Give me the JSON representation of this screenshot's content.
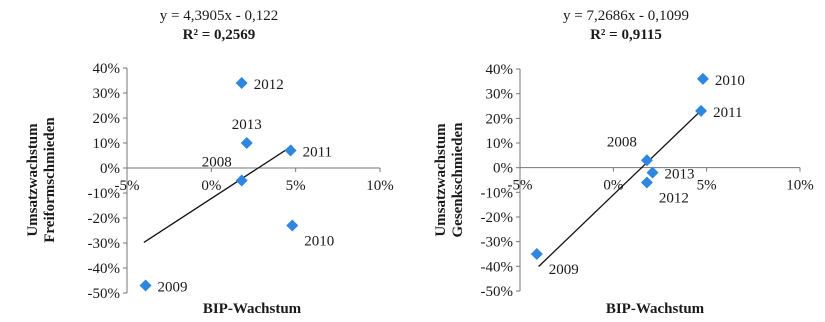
{
  "chart_data": [
    {
      "type": "scatter",
      "equation": "y = 4,3905x - 0,122",
      "r_squared": "R² = 0,2569",
      "xlabel": "BIP-Wachstum",
      "ylabel": [
        "Umsatzwachstum",
        "Freiformschmieden"
      ],
      "xlim": [
        -0.05,
        0.1
      ],
      "ylim": [
        -0.5,
        0.4
      ],
      "x_ticks": [
        -0.05,
        0.0,
        0.05,
        0.1
      ],
      "x_tick_labels": [
        "-5%",
        "0%",
        "5%",
        "10%"
      ],
      "y_ticks": [
        0.4,
        0.3,
        0.2,
        0.1,
        0.0,
        -0.1,
        -0.2,
        -0.3,
        -0.4,
        -0.5
      ],
      "y_tick_labels": [
        "40%",
        "30%",
        "20%",
        "10%",
        "0%",
        "-10%",
        "-20%",
        "-30%",
        "-40%",
        "-50%"
      ],
      "grid": false,
      "marker_color": "#2e86de",
      "trendline": {
        "slope": 4.3905,
        "intercept": -0.122,
        "x_range": [
          -0.04,
          0.048
        ]
      },
      "points": [
        {
          "label": "2008",
          "x": 0.018,
          "y": -0.05,
          "label_pos": "top-left"
        },
        {
          "label": "2009",
          "x": -0.039,
          "y": -0.47,
          "label_pos": "right"
        },
        {
          "label": "2010",
          "x": 0.048,
          "y": -0.23,
          "label_pos": "bottom-right"
        },
        {
          "label": "2011",
          "x": 0.047,
          "y": 0.07,
          "label_pos": "right"
        },
        {
          "label": "2012",
          "x": 0.018,
          "y": 0.34,
          "label_pos": "right"
        },
        {
          "label": "2013",
          "x": 0.021,
          "y": 0.1,
          "label_pos": "top"
        }
      ]
    },
    {
      "type": "scatter",
      "equation": "y = 7,2686x - 0,1099",
      "r_squared": "R² = 0,9115",
      "xlabel": "BIP-Wachstum",
      "ylabel": [
        "Umsatzwachstum",
        "Gesenkschmieden"
      ],
      "xlim": [
        -0.05,
        0.1
      ],
      "ylim": [
        -0.5,
        0.4
      ],
      "x_ticks": [
        -0.05,
        0.0,
        0.05,
        0.1
      ],
      "x_tick_labels": [
        "-5%",
        "0%",
        "5%",
        "10%"
      ],
      "y_ticks": [
        0.4,
        0.3,
        0.2,
        0.1,
        0.0,
        -0.1,
        -0.2,
        -0.3,
        -0.4,
        -0.5
      ],
      "y_tick_labels": [
        "40%",
        "30%",
        "20%",
        "10%",
        "0%",
        "-10%",
        "-20%",
        "-30%",
        "-40%",
        "-50%"
      ],
      "grid": false,
      "marker_color": "#2e86de",
      "trendline": {
        "slope": 7.2686,
        "intercept": -0.1099,
        "x_range": [
          -0.04,
          0.048
        ]
      },
      "points": [
        {
          "label": "2008",
          "x": 0.018,
          "y": 0.03,
          "label_pos": "top-left"
        },
        {
          "label": "2009",
          "x": -0.041,
          "y": -0.35,
          "label_pos": "bottom-right"
        },
        {
          "label": "2010",
          "x": 0.048,
          "y": 0.36,
          "label_pos": "right"
        },
        {
          "label": "2011",
          "x": 0.047,
          "y": 0.23,
          "label_pos": "right"
        },
        {
          "label": "2012",
          "x": 0.018,
          "y": -0.06,
          "label_pos": "bottom-right"
        },
        {
          "label": "2013",
          "x": 0.021,
          "y": -0.02,
          "label_pos": "right"
        }
      ]
    }
  ]
}
